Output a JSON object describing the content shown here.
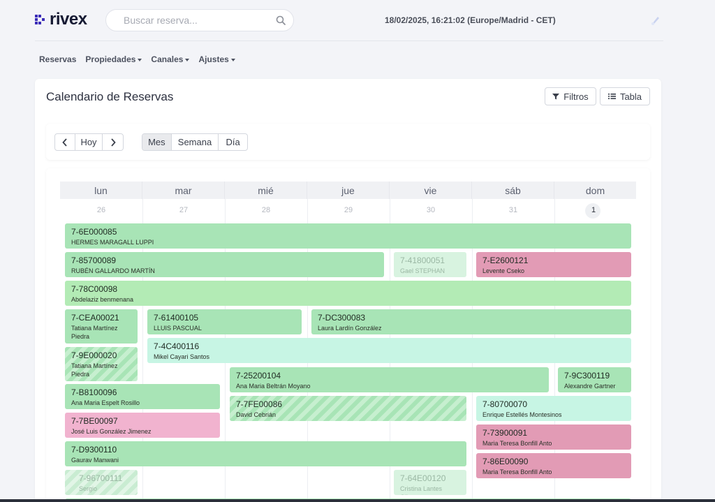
{
  "app": {
    "logo_text": "rivex",
    "brand_color": "#3b2db8"
  },
  "search": {
    "placeholder": "Buscar reserva..."
  },
  "header": {
    "datetime": "18/02/2025, 16:21:02 (Europe/Madrid - CET)"
  },
  "nav": {
    "items": [
      {
        "label": "Reservas",
        "has_dropdown": false
      },
      {
        "label": "Propiedades",
        "has_dropdown": true
      },
      {
        "label": "Canales",
        "has_dropdown": true
      },
      {
        "label": "Ajustes",
        "has_dropdown": true
      }
    ]
  },
  "page": {
    "title": "Calendario de Reservas",
    "filters_label": "Filtros",
    "table_label": "Tabla"
  },
  "toolbar": {
    "today_label": "Hoy",
    "views": [
      "Mes",
      "Semana",
      "Día"
    ],
    "active_view": "Mes"
  },
  "calendar": {
    "weekdays": [
      "lun",
      "mar",
      "mié",
      "jue",
      "vie",
      "sáb",
      "dom"
    ],
    "day_numbers": [
      "26",
      "27",
      "28",
      "29",
      "30",
      "31",
      "1"
    ],
    "today_index": 6,
    "events": [
      {
        "code": "7-6E000085",
        "name": "HERMES MARAGALL LUPPI"
      },
      {
        "code": "7-85700089",
        "name": "RUBÉN GALLARDO MARTÍN"
      },
      {
        "code": "7-41800051",
        "name": "Gael STEPHAN"
      },
      {
        "code": "7-E2600121",
        "name": "Levente Cseko"
      },
      {
        "code": "7-78C00098",
        "name": "Abdelaziz benmenana"
      },
      {
        "code": "7-CEA00021",
        "name": "Tatiana Martínez Piedra"
      },
      {
        "code": "7-61400105",
        "name": "LLUIS PASCUAL"
      },
      {
        "code": "7-DC300083",
        "name": "Laura Lardín González"
      },
      {
        "code": "7-4C400116",
        "name": "Mikel Cayari Santos"
      },
      {
        "code": "7-9E000020",
        "name": "Tatiana Martínez Piedra"
      },
      {
        "code": "7-25200104",
        "name": "Ana Maria Beltrán Moyano"
      },
      {
        "code": "7-9C300119",
        "name": "Alexandre Gartner"
      },
      {
        "code": "7-B8100096",
        "name": "Ana Maria Espelt Rosillo"
      },
      {
        "code": "7-7FE00086",
        "name": "David Cebrián"
      },
      {
        "code": "7-80700070",
        "name": "Enrique Estellés Montesinos"
      },
      {
        "code": "7-7BE00097",
        "name": "José Luis González Jimenez"
      },
      {
        "code": "7-73900091",
        "name": "Maria Teresa Bonfill Anto"
      },
      {
        "code": "7-D9300110",
        "name": "Gaurav Manwani"
      },
      {
        "code": "7-86E00090",
        "name": "Maria Teresa Bonfill Anto"
      },
      {
        "code": "7-96700111",
        "name": "Sergio"
      },
      {
        "code": "7-64E00120",
        "name": "Cristina Lantes Olivera"
      }
    ]
  }
}
